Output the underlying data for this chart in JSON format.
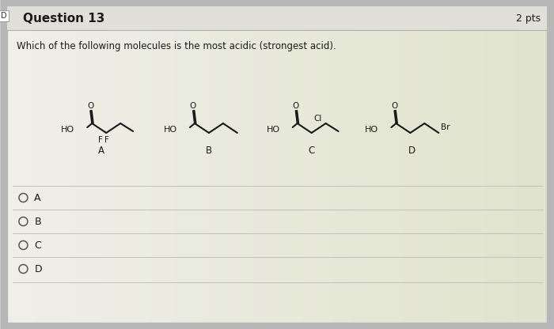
{
  "bg_outer": "#c8c8c8",
  "bg_card": "#f0efea",
  "bg_header": "#e2e2df",
  "header_text": "Question 13",
  "pts_text": "2 pts",
  "question_text": "Which of the following molecules is the most acidic (strongest acid).",
  "options": [
    "A",
    "B",
    "C",
    "D"
  ],
  "text_color": "#1a1a1a",
  "line_color": "#1a1a1a",
  "radio_color": "#555555",
  "divider_color": "#c0c0c0",
  "header_border": "#b0b0b0",
  "card_border": "#b8b8b8",
  "gradient_start": "#f0efea",
  "gradient_end": "#e8e8d8"
}
